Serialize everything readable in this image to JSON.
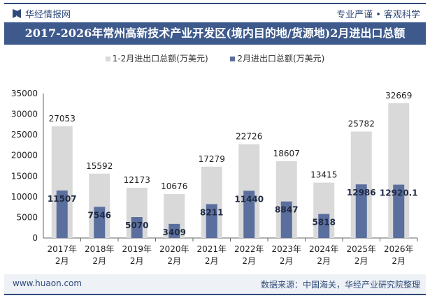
{
  "header": {
    "brand": "华经情报网",
    "slogan": "专业严谨 • 客观科学"
  },
  "footer": {
    "website": "www.huaon.com",
    "source": "数据来源：中国海关，华经产业研究院整理"
  },
  "colors": {
    "series1": "#d9d9d9",
    "series2": "#5b6f9e",
    "title_bg": "#3e5a8c"
  },
  "chart_data": {
    "type": "bar",
    "title": "2017-2026年常州高新技术产业开发区(境内目的地/货源地)2月进出口总额",
    "categories": [
      "2017年\n2月",
      "2018年\n2月",
      "2019年\n2月",
      "2020年\n2月",
      "2021年\n2月",
      "2022年\n2月",
      "2023年\n2月",
      "2024年\n2月",
      "2025年\n2月",
      "2026年\n2月"
    ],
    "series": [
      {
        "name": "1-2月进出口总额(万美元)",
        "values": [
          27053,
          15592,
          12173,
          10676,
          17279,
          22726,
          18607,
          13415,
          25782,
          32669
        ],
        "labels": [
          "27053",
          "15592",
          "12173",
          "10676",
          "17279",
          "22726",
          "18607",
          "13415",
          "25782",
          "32669"
        ]
      },
      {
        "name": "2月进出口总额(万美元)",
        "values": [
          11507,
          7546,
          5070,
          3409,
          8211,
          11440,
          8847,
          5818,
          12986,
          12920.1
        ],
        "labels": [
          "11507",
          "7546",
          "5070",
          "3409",
          "8211",
          "11440",
          "8847",
          "5818",
          "12986",
          "12920.1"
        ]
      }
    ],
    "ylim": [
      0,
      35000
    ],
    "yticks": [
      0,
      5000,
      10000,
      15000,
      20000,
      25000,
      30000,
      35000
    ],
    "legend": "top",
    "grid": false
  }
}
